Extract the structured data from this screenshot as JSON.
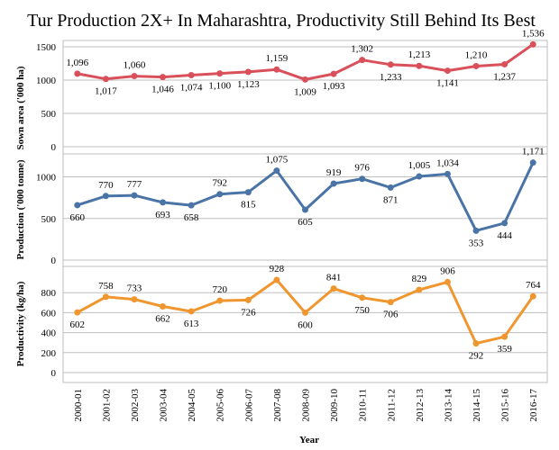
{
  "chart_data": {
    "type": "line",
    "title": "Tur Production 2X+ In Maharashtra, Productivity Still Behind Its Best",
    "xlabel": "Year",
    "categories": [
      "2000-01",
      "2001-02",
      "2002-03",
      "2003-04",
      "2004-05",
      "2005-06",
      "2006-07",
      "2007-08",
      "2008-09",
      "2009-10",
      "2010-11",
      "2011-12",
      "2012-13",
      "2013-14",
      "2014-15",
      "2015-16",
      "2016-17"
    ],
    "grid": true,
    "panels": [
      {
        "ylabel": "Sown area ('000 ha)",
        "ylim": [
          0,
          1500
        ],
        "yticks": [
          0,
          500,
          1000,
          1500
        ],
        "color": "#d9505a",
        "values": [
          1096,
          1017,
          1060,
          1046,
          1074,
          1100,
          1123,
          1159,
          1009,
          1093,
          1302,
          1233,
          1213,
          1141,
          1210,
          1237,
          1536
        ],
        "data_labels": [
          "1,096",
          "1,017",
          "1,060",
          "1,046",
          "1,074",
          "1,100",
          "1,123",
          "1,159",
          "1,009",
          "1,093",
          "1,302",
          "1,233",
          "1,213",
          "1,141",
          "1,210",
          "1,237",
          "1,536"
        ]
      },
      {
        "ylabel": "Production ('000 tonne)",
        "ylim": [
          0,
          1200
        ],
        "yticks": [
          0,
          500,
          1000
        ],
        "color": "#4a74a6",
        "values": [
          660,
          770,
          777,
          693,
          658,
          792,
          815,
          1075,
          605,
          919,
          976,
          871,
          1005,
          1034,
          353,
          444,
          1171
        ],
        "data_labels": [
          "660",
          "770",
          "777",
          "693",
          "658",
          "792",
          "815",
          "1,075",
          "605",
          "919",
          "976",
          "871",
          "1,005",
          "1,034",
          "353",
          "444",
          "1,171"
        ]
      },
      {
        "ylabel": "Productivity (kg/ha)",
        "ylim": [
          0,
          1000
        ],
        "yticks": [
          0,
          200,
          400,
          600,
          800
        ],
        "color": "#f0962f",
        "values": [
          602,
          758,
          733,
          662,
          613,
          720,
          726,
          928,
          600,
          841,
          750,
          706,
          829,
          906,
          292,
          359,
          764
        ],
        "data_labels": [
          "602",
          "758",
          "733",
          "662",
          "613",
          "720",
          "726",
          "928",
          "600",
          "841",
          "750",
          "706",
          "829",
          "906",
          "292",
          "359",
          "764"
        ]
      }
    ]
  }
}
